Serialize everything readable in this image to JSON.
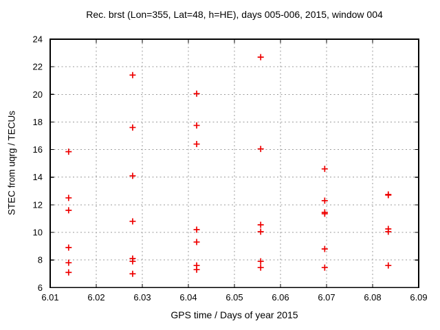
{
  "chart_data": {
    "type": "scatter",
    "title": "Rec. brst (Lon=355, Lat=48, h=HE), days 005-006, 2015, window 004",
    "xlabel": "GPS time / Days of year 2015",
    "ylabel": "STEC from uqrg / TECUs",
    "xlim": [
      6.01,
      6.09
    ],
    "ylim": [
      6,
      24
    ],
    "xticks": [
      "6.01",
      "6.02",
      "6.03",
      "6.04",
      "6.05",
      "6.06",
      "6.07",
      "6.08",
      "6.09"
    ],
    "yticks": [
      "6",
      "8",
      "10",
      "12",
      "14",
      "16",
      "18",
      "20",
      "22",
      "24"
    ],
    "grid": true,
    "legend_position": "none",
    "marker": {
      "shape": "plus",
      "color": "#ee0000",
      "size": 9,
      "stroke_width": 1.7
    },
    "colors": {
      "background": "#ffffff",
      "axis": "#000000",
      "grid": "#999999",
      "text": "#000000"
    },
    "series": [
      {
        "points": [
          [
            6.014,
            15.85
          ],
          [
            6.014,
            12.5
          ],
          [
            6.014,
            11.6
          ],
          [
            6.014,
            8.9
          ],
          [
            6.014,
            7.8
          ],
          [
            6.014,
            7.1
          ],
          [
            6.0279,
            21.4
          ],
          [
            6.0279,
            17.6
          ],
          [
            6.0279,
            14.1
          ],
          [
            6.0279,
            10.8
          ],
          [
            6.0279,
            8.1
          ],
          [
            6.0279,
            7.9
          ],
          [
            6.0279,
            7.0
          ],
          [
            6.0418,
            20.05
          ],
          [
            6.0418,
            17.75
          ],
          [
            6.0418,
            16.4
          ],
          [
            6.0418,
            10.2
          ],
          [
            6.0418,
            9.3
          ],
          [
            6.0418,
            7.6
          ],
          [
            6.0418,
            7.3
          ],
          [
            6.0557,
            22.7
          ],
          [
            6.0557,
            16.05
          ],
          [
            6.0557,
            10.55
          ],
          [
            6.0557,
            10.05
          ],
          [
            6.0557,
            7.9
          ],
          [
            6.0557,
            7.45
          ],
          [
            6.0696,
            14.6
          ],
          [
            6.0696,
            12.3
          ],
          [
            6.0696,
            11.45
          ],
          [
            6.0696,
            11.35
          ],
          [
            6.0696,
            8.8
          ],
          [
            6.0696,
            7.45
          ],
          [
            6.0834,
            12.75
          ],
          [
            6.0834,
            12.7
          ],
          [
            6.0834,
            10.25
          ],
          [
            6.0834,
            10.05
          ],
          [
            6.0834,
            7.6
          ]
        ]
      }
    ]
  }
}
